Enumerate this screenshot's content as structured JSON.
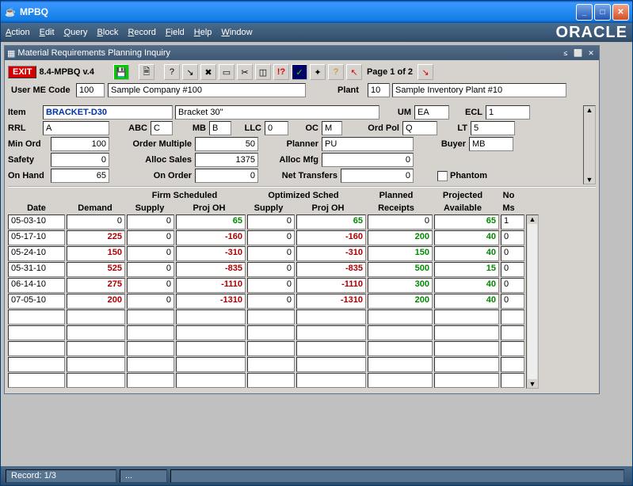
{
  "window": {
    "title": "MPBQ"
  },
  "menu": [
    "Action",
    "Edit",
    "Query",
    "Block",
    "Record",
    "Field",
    "Help",
    "Window"
  ],
  "brand": "ORACLE",
  "mdi_title": "Material Requirements Planning Inquiry",
  "version": "8.4-MPBQ v.4",
  "exit": "EXIT",
  "page": "Page 1 of 2",
  "header": {
    "user_me_code_lbl": "User ME Code",
    "user_me_code": "100",
    "company": "Sample Company #100",
    "plant_lbl": "Plant",
    "plant": "10",
    "plant_name": "Sample Inventory Plant #10"
  },
  "item": {
    "item_lbl": "Item",
    "item": "BRACKET-D30",
    "item_desc": "Bracket 30\"",
    "um_lbl": "UM",
    "um": "EA",
    "ecl_lbl": "ECL",
    "ecl": "1",
    "rrl_lbl": "RRL",
    "rrl": "A",
    "abc_lbl": "ABC",
    "abc": "C",
    "mb_lbl": "MB",
    "mb": "B",
    "llc_lbl": "LLC",
    "llc": "0",
    "oc_lbl": "OC",
    "oc": "M",
    "ordpol_lbl": "Ord Pol",
    "ordpol": "Q",
    "lt_lbl": "LT",
    "lt": "5",
    "minord_lbl": "Min Ord",
    "minord": "100",
    "ordmult_lbl": "Order Multiple",
    "ordmult": "50",
    "planner_lbl": "Planner",
    "planner": "PU",
    "buyer_lbl": "Buyer",
    "buyer": "MB",
    "safety_lbl": "Safety",
    "safety": "0",
    "allocsales_lbl": "Alloc Sales",
    "allocsales": "1375",
    "allocmfg_lbl": "Alloc Mfg",
    "allocmfg": "0",
    "onhand_lbl": "On Hand",
    "onhand": "65",
    "onorder_lbl": "On Order",
    "onorder": "0",
    "nettrans_lbl": "Net Transfers",
    "nettrans": "0",
    "phantom_lbl": "Phantom"
  },
  "grid": {
    "group_firm": "Firm Scheduled",
    "group_opt": "Optimized Sched",
    "h_date": "Date",
    "h_demand": "Demand",
    "h_supply": "Supply",
    "h_projoh": "Proj OH",
    "h_planned": "Planned",
    "h_receipts": "Receipts",
    "h_projected": "Projected",
    "h_available": "Available",
    "h_no": "No",
    "h_ms": "Ms",
    "rows": [
      {
        "date": "05-03-10",
        "demand": "0",
        "fsupply": "0",
        "fproj": "65",
        "fproj_cls": "pos",
        "osupply": "0",
        "oproj": "65",
        "oproj_cls": "pos",
        "planned": "0",
        "avail": "65",
        "avail_cls": "pos",
        "ms": "1"
      },
      {
        "date": "05-17-10",
        "demand": "225",
        "dem_cls": "neg",
        "fsupply": "0",
        "fproj": "-160",
        "fproj_cls": "neg",
        "osupply": "0",
        "oproj": "-160",
        "oproj_cls": "neg",
        "planned": "200",
        "plan_cls": "pos",
        "avail": "40",
        "avail_cls": "pos",
        "ms": "0"
      },
      {
        "date": "05-24-10",
        "demand": "150",
        "dem_cls": "neg",
        "fsupply": "0",
        "fproj": "-310",
        "fproj_cls": "neg",
        "osupply": "0",
        "oproj": "-310",
        "oproj_cls": "neg",
        "planned": "150",
        "plan_cls": "pos",
        "avail": "40",
        "avail_cls": "pos",
        "ms": "0"
      },
      {
        "date": "05-31-10",
        "demand": "525",
        "dem_cls": "neg",
        "fsupply": "0",
        "fproj": "-835",
        "fproj_cls": "neg",
        "osupply": "0",
        "oproj": "-835",
        "oproj_cls": "neg",
        "planned": "500",
        "plan_cls": "pos",
        "avail": "15",
        "avail_cls": "pos",
        "ms": "0"
      },
      {
        "date": "06-14-10",
        "demand": "275",
        "dem_cls": "neg",
        "fsupply": "0",
        "fproj": "-1110",
        "fproj_cls": "neg",
        "osupply": "0",
        "oproj": "-1110",
        "oproj_cls": "neg",
        "planned": "300",
        "plan_cls": "pos",
        "avail": "40",
        "avail_cls": "pos",
        "ms": "0"
      },
      {
        "date": "07-05-10",
        "demand": "200",
        "dem_cls": "neg",
        "fsupply": "0",
        "fproj": "-1310",
        "fproj_cls": "neg",
        "osupply": "0",
        "oproj": "-1310",
        "oproj_cls": "neg",
        "planned": "200",
        "plan_cls": "pos",
        "avail": "40",
        "avail_cls": "pos",
        "ms": "0"
      },
      {},
      {},
      {},
      {},
      {}
    ]
  },
  "status": {
    "record": "Record: 1/3",
    "misc": "..."
  },
  "colwidths": {
    "date": 72,
    "demand": 74,
    "fsupply": 60,
    "fproj": 88,
    "osupply": 60,
    "oproj": 88,
    "planned": 82,
    "avail": 82,
    "ms": 30
  }
}
